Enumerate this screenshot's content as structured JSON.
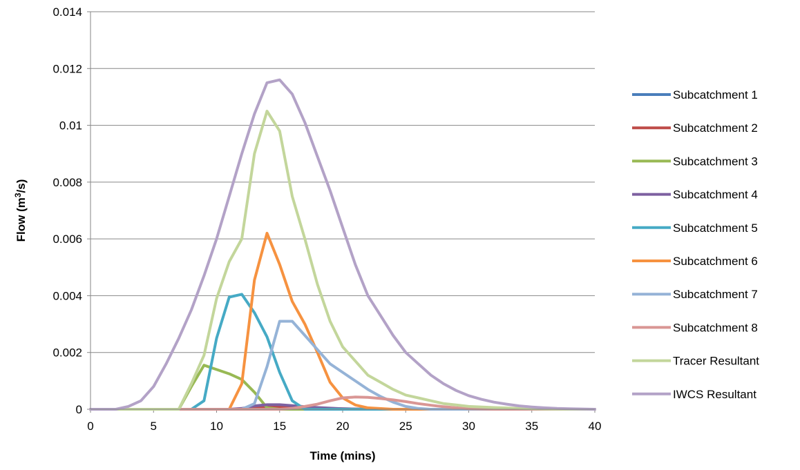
{
  "chart_data": {
    "type": "line",
    "title": "",
    "xlabel": "Time (mins)",
    "ylabel_main": "Flow (m",
    "ylabel_sup": "3",
    "ylabel_tail": "/s)",
    "xlim": [
      0,
      40
    ],
    "ylim": [
      0,
      0.014
    ],
    "x_ticks": [
      "0",
      "5",
      "10",
      "15",
      "20",
      "25",
      "30",
      "35",
      "40"
    ],
    "y_ticks": [
      "0",
      "0.002",
      "0.004",
      "0.006",
      "0.008",
      "0.01",
      "0.012",
      "0.014"
    ],
    "grid": "horizontal",
    "legend_position": "right",
    "series": [
      {
        "name": "Subcatchment 1",
        "color": "#4a7ebb",
        "points": [
          [
            0,
            0
          ],
          [
            12,
            0
          ],
          [
            13,
            5e-05
          ],
          [
            14,
            0.0001
          ],
          [
            15,
            0.0001
          ],
          [
            16,
            8e-05
          ],
          [
            17,
            5e-05
          ],
          [
            18,
            3e-05
          ],
          [
            20,
            1e-05
          ],
          [
            22,
            0
          ],
          [
            40,
            0
          ]
        ]
      },
      {
        "name": "Subcatchment 2",
        "color": "#be4b48",
        "points": [
          [
            0,
            0
          ],
          [
            12,
            0
          ],
          [
            13,
            4e-05
          ],
          [
            14,
            8e-05
          ],
          [
            15,
            9e-05
          ],
          [
            16,
            8e-05
          ],
          [
            17,
            6e-05
          ],
          [
            18,
            4e-05
          ],
          [
            20,
            2e-05
          ],
          [
            22,
            0
          ],
          [
            40,
            0
          ]
        ]
      },
      {
        "name": "Subcatchment 3",
        "color": "#98b954",
        "points": [
          [
            0,
            0
          ],
          [
            7,
            0
          ],
          [
            8,
            0.0008
          ],
          [
            9,
            0.00155
          ],
          [
            10,
            0.0014
          ],
          [
            11,
            0.00125
          ],
          [
            12,
            0.00105
          ],
          [
            13,
            0.0006
          ],
          [
            14,
            5e-05
          ],
          [
            15,
            0
          ],
          [
            40,
            0
          ]
        ]
      },
      {
        "name": "Subcatchment 4",
        "color": "#7d60a0",
        "points": [
          [
            0,
            0
          ],
          [
            11,
            0
          ],
          [
            12,
            3e-05
          ],
          [
            13,
            0.00012
          ],
          [
            14,
            0.00016
          ],
          [
            15,
            0.00016
          ],
          [
            16,
            0.00013
          ],
          [
            17,
            9e-05
          ],
          [
            18,
            6e-05
          ],
          [
            19,
            4e-05
          ],
          [
            20,
            2e-05
          ],
          [
            22,
            0
          ],
          [
            40,
            0
          ]
        ]
      },
      {
        "name": "Subcatchment 5",
        "color": "#46aac5",
        "points": [
          [
            0,
            0
          ],
          [
            8,
            0
          ],
          [
            9,
            0.0003
          ],
          [
            10,
            0.0025
          ],
          [
            11,
            0.00395
          ],
          [
            12,
            0.00405
          ],
          [
            13,
            0.0034
          ],
          [
            14,
            0.00255
          ],
          [
            15,
            0.0013
          ],
          [
            16,
            0.0003
          ],
          [
            17,
            0
          ],
          [
            40,
            0
          ]
        ]
      },
      {
        "name": "Subcatchment 6",
        "color": "#f69240",
        "points": [
          [
            0,
            0
          ],
          [
            11,
            0
          ],
          [
            12,
            0.0009
          ],
          [
            13,
            0.00455
          ],
          [
            14,
            0.0062
          ],
          [
            15,
            0.0051
          ],
          [
            16,
            0.0038
          ],
          [
            17,
            0.003
          ],
          [
            18,
            0.002
          ],
          [
            19,
            0.00095
          ],
          [
            20,
            0.0004
          ],
          [
            21,
            0.00015
          ],
          [
            22,
            5e-05
          ],
          [
            24,
            0
          ],
          [
            40,
            0
          ]
        ]
      },
      {
        "name": "Subcatchment 7",
        "color": "#95b3d7",
        "points": [
          [
            0,
            0
          ],
          [
            12,
            0
          ],
          [
            13,
            0.0002
          ],
          [
            14,
            0.0015
          ],
          [
            15,
            0.0031
          ],
          [
            16,
            0.0031
          ],
          [
            17,
            0.0026
          ],
          [
            18,
            0.0021
          ],
          [
            19,
            0.0016
          ],
          [
            20,
            0.0013
          ],
          [
            21,
            0.001
          ],
          [
            22,
            0.0007
          ],
          [
            23,
            0.00045
          ],
          [
            24,
            0.00025
          ],
          [
            25,
            0.0001
          ],
          [
            26,
            3e-05
          ],
          [
            27,
            0
          ],
          [
            40,
            0
          ]
        ]
      },
      {
        "name": "Subcatchment 8",
        "color": "#d99694",
        "points": [
          [
            0,
            0
          ],
          [
            15,
            0
          ],
          [
            16,
            3e-05
          ],
          [
            17,
            0.0001
          ],
          [
            18,
            0.00018
          ],
          [
            19,
            0.0003
          ],
          [
            20,
            0.0004
          ],
          [
            21,
            0.00043
          ],
          [
            22,
            0.00042
          ],
          [
            23,
            0.00038
          ],
          [
            24,
            0.00033
          ],
          [
            25,
            0.00027
          ],
          [
            26,
            0.0002
          ],
          [
            27,
            0.00014
          ],
          [
            28,
            9e-05
          ],
          [
            29,
            5e-05
          ],
          [
            30,
            2e-05
          ],
          [
            32,
            0
          ],
          [
            40,
            0
          ]
        ]
      },
      {
        "name": "Tracer Resultant",
        "color": "#c3d69b",
        "points": [
          [
            0,
            0
          ],
          [
            7,
            0
          ],
          [
            8,
            0.0009
          ],
          [
            9,
            0.0019
          ],
          [
            10,
            0.0039
          ],
          [
            11,
            0.0052
          ],
          [
            12,
            0.006
          ],
          [
            13,
            0.009
          ],
          [
            14,
            0.0105
          ],
          [
            15,
            0.0098
          ],
          [
            16,
            0.0075
          ],
          [
            17,
            0.006
          ],
          [
            18,
            0.0044
          ],
          [
            19,
            0.0031
          ],
          [
            20,
            0.0022
          ],
          [
            21,
            0.0017
          ],
          [
            22,
            0.0012
          ],
          [
            23,
            0.00095
          ],
          [
            24,
            0.0007
          ],
          [
            25,
            0.0005
          ],
          [
            26,
            0.0004
          ],
          [
            27,
            0.0003
          ],
          [
            28,
            0.0002
          ],
          [
            29,
            0.00015
          ],
          [
            30,
            0.0001
          ],
          [
            32,
            6e-05
          ],
          [
            34,
            3e-05
          ],
          [
            36,
            1e-05
          ],
          [
            38,
            0
          ],
          [
            40,
            0
          ]
        ]
      },
      {
        "name": "IWCS Resultant",
        "color": "#b3a2c7",
        "points": [
          [
            0,
            0
          ],
          [
            2,
            0
          ],
          [
            3,
            0.0001
          ],
          [
            4,
            0.0003
          ],
          [
            5,
            0.0008
          ],
          [
            6,
            0.0016
          ],
          [
            7,
            0.0025
          ],
          [
            8,
            0.0035
          ],
          [
            9,
            0.0047
          ],
          [
            10,
            0.006
          ],
          [
            11,
            0.0075
          ],
          [
            12,
            0.009
          ],
          [
            13,
            0.0104
          ],
          [
            14,
            0.0115
          ],
          [
            15,
            0.0116
          ],
          [
            16,
            0.0111
          ],
          [
            17,
            0.0101
          ],
          [
            18,
            0.0089
          ],
          [
            19,
            0.0077
          ],
          [
            20,
            0.0064
          ],
          [
            21,
            0.0051
          ],
          [
            22,
            0.004
          ],
          [
            23,
            0.0033
          ],
          [
            24,
            0.0026
          ],
          [
            25,
            0.002
          ],
          [
            26,
            0.0016
          ],
          [
            27,
            0.0012
          ],
          [
            28,
            0.0009
          ],
          [
            29,
            0.00066
          ],
          [
            30,
            0.00048
          ],
          [
            31,
            0.00035
          ],
          [
            32,
            0.00025
          ],
          [
            33,
            0.00018
          ],
          [
            34,
            0.00012
          ],
          [
            35,
            8e-05
          ],
          [
            36,
            5e-05
          ],
          [
            37,
            3e-05
          ],
          [
            38,
            2e-05
          ],
          [
            39,
            1e-05
          ],
          [
            40,
            0
          ]
        ]
      }
    ]
  }
}
